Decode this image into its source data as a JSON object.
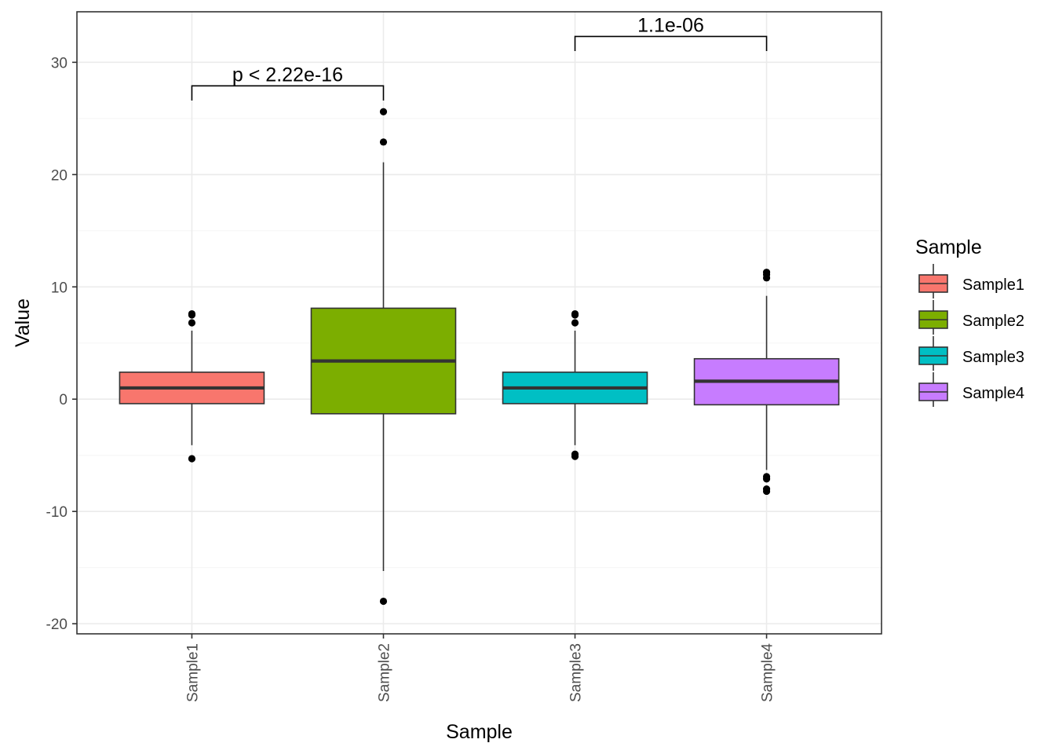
{
  "chart_data": {
    "type": "box",
    "title": "",
    "xlabel": "Sample",
    "ylabel": "Value",
    "ylim": [
      -20.9,
      34.5
    ],
    "yticks": [
      -20,
      -10,
      0,
      10,
      20,
      30
    ],
    "yminor": [
      -15,
      -5,
      5,
      15,
      25
    ],
    "grid": true,
    "categories": [
      "Sample1",
      "Sample2",
      "Sample3",
      "Sample4"
    ],
    "boxes": [
      {
        "name": "Sample1",
        "color": "#F8766D",
        "q1": -0.4,
        "median": 1.0,
        "q3": 2.4,
        "whisker_low": -4.1,
        "whisker_high": 6.1,
        "outliers": [
          7.6,
          7.5,
          6.8,
          -5.3
        ]
      },
      {
        "name": "Sample2",
        "color": "#7CAE00",
        "q1": -1.3,
        "median": 3.4,
        "q3": 8.1,
        "whisker_low": -15.3,
        "whisker_high": 21.1,
        "outliers": [
          25.6,
          22.9,
          -18.0
        ]
      },
      {
        "name": "Sample3",
        "color": "#00BFC4",
        "q1": -0.4,
        "median": 1.0,
        "q3": 2.4,
        "whisker_low": -4.1,
        "whisker_high": 6.1,
        "outliers": [
          7.6,
          7.5,
          6.8,
          -4.9,
          -5.1
        ]
      },
      {
        "name": "Sample4",
        "color": "#C77CFF",
        "q1": -0.5,
        "median": 1.6,
        "q3": 3.6,
        "whisker_low": -6.3,
        "whisker_high": 9.2,
        "outliers": [
          11.3,
          11.1,
          10.8,
          -6.9,
          -7.1,
          -8.0,
          -8.2
        ]
      }
    ],
    "legend": {
      "title": "Sample",
      "position": "right",
      "entries": [
        "Sample1",
        "Sample2",
        "Sample3",
        "Sample4"
      ]
    },
    "comparisons": [
      {
        "from": "Sample1",
        "to": "Sample2",
        "label": "p < 2.22e-16",
        "y": 27.9,
        "tip_y": 26.6
      },
      {
        "from": "Sample3",
        "to": "Sample4",
        "label": "1.1e-06",
        "y": 32.3,
        "tip_y": 31.0
      }
    ]
  },
  "colors": {
    "panel_border": "#333333",
    "grid_major": "#ebebeb",
    "grid_minor": "#f5f5f5",
    "box_line": "#333333",
    "point": "#000000"
  }
}
